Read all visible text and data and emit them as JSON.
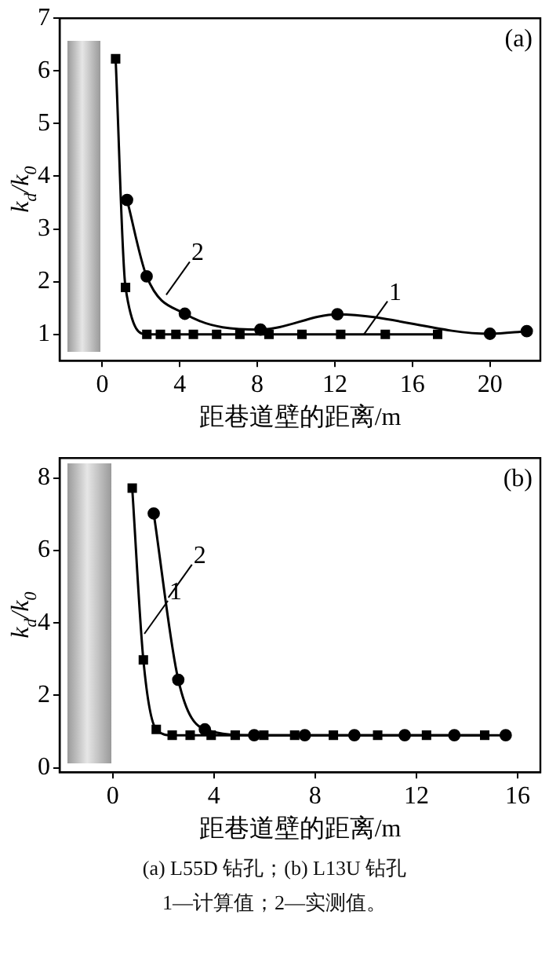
{
  "chart_data": [
    {
      "type": "line",
      "xlabel": "距巷道壁的距离/m",
      "ylabel": "k$_{d}$/k$_{0}$",
      "xlim": [
        -2.2,
        22.6
      ],
      "ylim": [
        0.5,
        7
      ],
      "xticks": [
        0,
        4,
        8,
        12,
        16,
        20
      ],
      "yticks": [
        1,
        2,
        3,
        4,
        5,
        6,
        7
      ],
      "grid": false,
      "legend": false,
      "line_style": "solid",
      "annotations": [
        "(a)",
        {
          "text": "1",
          "x": 13.5,
          "y": 1
        },
        {
          "text": "2",
          "x": 3.3,
          "y": 1.75
        }
      ],
      "series": [
        {
          "color": "#000000",
          "marker": "square",
          "x": [
            0.69,
            1.2,
            2.3,
            3.0,
            3.8,
            4.7,
            5.9,
            7.1,
            8.6,
            10.3,
            12.3,
            14.6,
            17.3
          ],
          "values": [
            6.23,
            1.89,
            1,
            1,
            1,
            1,
            1,
            1,
            1,
            1,
            1,
            1,
            1
          ]
        },
        {
          "color": "#000000",
          "marker": "circle",
          "x": [
            1.28,
            2.29,
            4.26,
            8.16,
            12.13,
            20.0,
            21.9
          ],
          "values": [
            3.55,
            2.1,
            1.39,
            1.09,
            1.38,
            1.01,
            1.06
          ]
        }
      ]
    },
    {
      "type": "line",
      "xlabel": "距巷道壁的距离/m",
      "ylabel": "k$_{d}$/k$_{0}$",
      "xlim": [
        -2.1,
        16.9
      ],
      "ylim": [
        -0.12,
        8.55
      ],
      "xticks": [
        0,
        4,
        8,
        12,
        16
      ],
      "yticks": [
        0,
        2,
        4,
        6,
        8
      ],
      "grid": false,
      "legend": false,
      "line_style": "solid",
      "annotations": [
        "(b)",
        {
          "text": "2",
          "x": 2.2,
          "y": 4.7
        },
        {
          "text": "1",
          "x": 1.25,
          "y": 3.7
        },
        "(a) L55D 钻孔；(b) L13U 钻孔",
        "1—计算值；2—实测值。"
      ],
      "series": [
        {
          "color": "#000000",
          "marker": "square",
          "x": [
            0.77,
            1.21,
            1.72,
            2.35,
            3.06,
            3.89,
            4.84,
            5.97,
            7.19,
            8.72,
            10.47,
            12.4,
            14.7
          ],
          "values": [
            7.72,
            2.98,
            1.06,
            0.9,
            0.9,
            0.9,
            0.9,
            0.9,
            0.9,
            0.9,
            0.9,
            0.9,
            0.9
          ]
        },
        {
          "color": "#000000",
          "marker": "circle",
          "x": [
            1.62,
            2.59,
            3.64,
            5.59,
            7.59,
            9.55,
            11.54,
            13.5,
            15.53
          ],
          "values": [
            7.02,
            2.43,
            1.06,
            0.9,
            0.9,
            0.9,
            0.9,
            0.9,
            0.9
          ]
        }
      ]
    }
  ]
}
